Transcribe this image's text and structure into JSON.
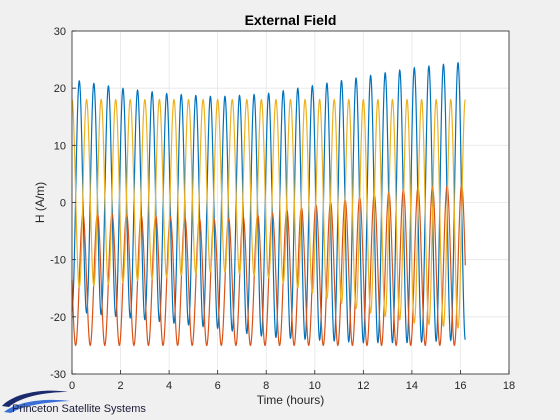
{
  "chart_data": {
    "type": "line",
    "title": "External Field",
    "xlabel": "Time (hours)",
    "ylabel": "H (A/m)",
    "xlim": [
      0,
      18
    ],
    "ylim": [
      -30,
      30
    ],
    "xticks": [
      0,
      2,
      4,
      6,
      8,
      10,
      12,
      14,
      16,
      18
    ],
    "yticks": [
      -30,
      -20,
      -10,
      0,
      10,
      20,
      30
    ],
    "grid": true,
    "legend": "none",
    "period_hours": 0.6,
    "x_end": 16.2,
    "series": [
      {
        "color": "#0072bd",
        "x": [
          0,
          2,
          4,
          6,
          8,
          10,
          12,
          14,
          16,
          16.2
        ],
        "max": [
          21.5,
          20.0,
          19.0,
          18.5,
          19.0,
          20.5,
          22.0,
          23.5,
          24.5,
          24.5
        ],
        "min": [
          -19.0,
          -20.0,
          -21.0,
          -22.0,
          -23.5,
          -24.0,
          -24.5,
          -24.5,
          -24.0,
          -24.0
        ]
      },
      {
        "color": "#d95319",
        "x": [
          0,
          2,
          4,
          6,
          8,
          10,
          12,
          14,
          16,
          16.2
        ],
        "max": [
          -2.0,
          -2.0,
          -2.5,
          -3.0,
          -2.0,
          -0.5,
          1.0,
          2.5,
          3.0,
          3.0
        ],
        "min": [
          -25.0,
          -25.0,
          -25.0,
          -25.0,
          -25.0,
          -25.0,
          -25.0,
          -25.0,
          -25.0,
          -25.0
        ]
      },
      {
        "color": "#edb120",
        "x": [
          0,
          2,
          4,
          6,
          8,
          10,
          12,
          14,
          16,
          16.2
        ],
        "max": [
          18.0,
          18.0,
          18.0,
          18.0,
          18.0,
          18.0,
          18.0,
          18.0,
          18.0,
          18.0
        ],
        "min": [
          -15.0,
          -14.0,
          -13.0,
          -12.0,
          -13.0,
          -16.0,
          -19.0,
          -21.0,
          -22.0,
          -22.0
        ]
      }
    ]
  },
  "logo": {
    "text": "Princeton Satellite Systems",
    "colors": {
      "swoosh_dark": "#1a2a6c",
      "swoosh_light": "#3a6fd8"
    }
  }
}
